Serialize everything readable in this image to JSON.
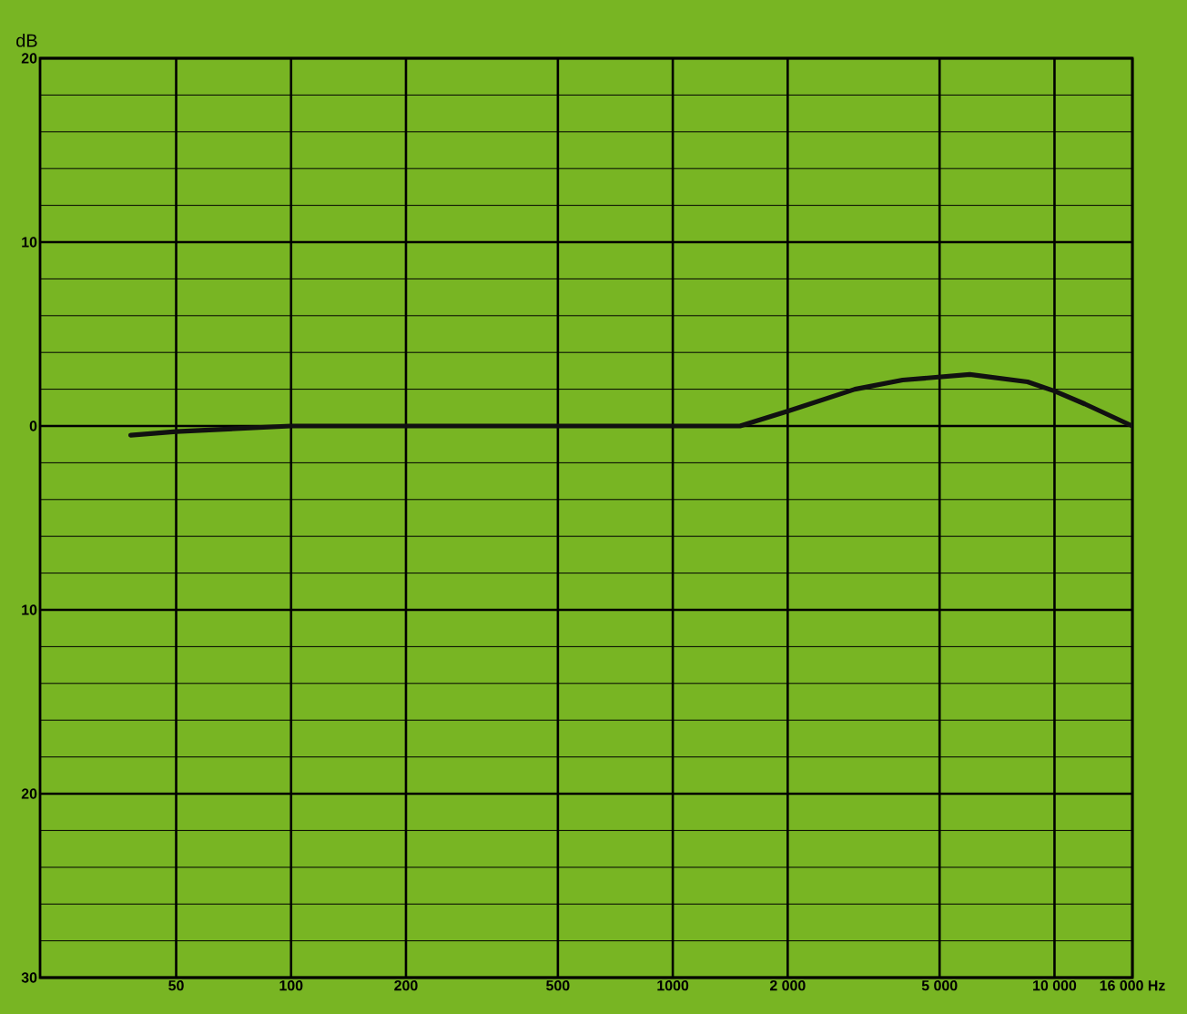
{
  "chart_data": {
    "type": "line",
    "ylabel": "dB",
    "log": "x",
    "grid": true,
    "marker": "none",
    "line_style": "solid",
    "xlim": [
      22,
      16000
    ],
    "ylim": [
      -30,
      20
    ],
    "xticks": [
      50,
      100,
      200,
      500,
      1000,
      {
        "value": 2000,
        "label": "2 000"
      },
      {
        "value": 5000,
        "label": "5 000"
      },
      {
        "value": 10000,
        "label": "10 000"
      },
      {
        "value": 16000,
        "label": "16 000 Hz"
      }
    ],
    "yticks": [
      {
        "value": -30,
        "label": "30"
      },
      {
        "value": -20,
        "label": "20"
      },
      {
        "value": -10,
        "label": "10"
      },
      0,
      10,
      20
    ],
    "series": [
      {
        "color": "#111111",
        "x": [
          38,
          50,
          100,
          1500,
          2000,
          3000,
          4000,
          6000,
          8500,
          10000,
          12000,
          16000
        ],
        "values": [
          -0.5,
          -0.3,
          0,
          0,
          0.8,
          2.0,
          2.5,
          2.8,
          2.4,
          1.9,
          1.2,
          0
        ]
      }
    ]
  }
}
